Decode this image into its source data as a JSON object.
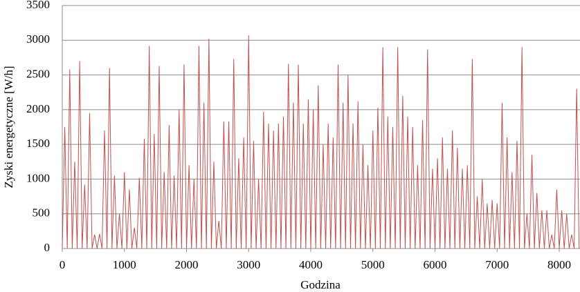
{
  "chart_data": {
    "type": "line",
    "x_label": "Godzina",
    "y_label": "Zyski energetyczne [W/h]",
    "color": "#c0504d",
    "grid": true,
    "xlim": [
      0,
      8334
    ],
    "xticks": [
      0,
      1000,
      2000,
      3000,
      4000,
      5000,
      6000,
      7000,
      8000
    ],
    "ylim": [
      0,
      3500
    ],
    "yticks": [
      0,
      500,
      1000,
      1500,
      2000,
      2500,
      3000,
      3500
    ],
    "x": [
      0,
      40,
      80,
      120,
      160,
      200,
      240,
      280,
      320,
      360,
      400,
      440,
      480,
      520,
      560,
      600,
      640,
      680,
      720,
      760,
      800,
      840,
      880,
      920,
      960,
      1000,
      1040,
      1080,
      1120,
      1160,
      1200,
      1240,
      1280,
      1320,
      1360,
      1400,
      1440,
      1480,
      1520,
      1560,
      1600,
      1640,
      1680,
      1720,
      1760,
      1800,
      1840,
      1880,
      1920,
      1960,
      2000,
      2040,
      2080,
      2120,
      2160,
      2200,
      2240,
      2280,
      2320,
      2360,
      2400,
      2440,
      2480,
      2520,
      2560,
      2600,
      2640,
      2680,
      2720,
      2760,
      2800,
      2840,
      2880,
      2920,
      2960,
      3000,
      3040,
      3080,
      3120,
      3160,
      3200,
      3240,
      3280,
      3320,
      3360,
      3400,
      3440,
      3480,
      3520,
      3560,
      3600,
      3640,
      3680,
      3720,
      3760,
      3800,
      3840,
      3880,
      3920,
      3960,
      4000,
      4040,
      4080,
      4120,
      4160,
      4200,
      4240,
      4280,
      4320,
      4360,
      4400,
      4440,
      4480,
      4520,
      4560,
      4600,
      4640,
      4680,
      4720,
      4760,
      4800,
      4840,
      4880,
      4920,
      4960,
      5000,
      5040,
      5080,
      5120,
      5160,
      5200,
      5240,
      5280,
      5320,
      5360,
      5400,
      5440,
      5480,
      5520,
      5560,
      5600,
      5640,
      5680,
      5720,
      5760,
      5800,
      5840,
      5880,
      5920,
      5960,
      6000,
      6040,
      6080,
      6120,
      6160,
      6200,
      6240,
      6280,
      6320,
      6360,
      6400,
      6440,
      6480,
      6520,
      6560,
      6600,
      6640,
      6680,
      6720,
      6760,
      6800,
      6840,
      6880,
      6920,
      6960,
      7000,
      7040,
      7080,
      7120,
      7160,
      7200,
      7240,
      7280,
      7320,
      7360,
      7400,
      7440,
      7480,
      7520,
      7560,
      7600,
      7640,
      7680,
      7720,
      7760,
      7800,
      7840,
      7880,
      7920,
      7960,
      8000,
      8040,
      8080,
      8120,
      8160,
      8200,
      8240,
      8280,
      8320
    ],
    "values": [
      0,
      1750,
      0,
      2580,
      0,
      1250,
      0,
      2700,
      0,
      920,
      0,
      1950,
      0,
      200,
      0,
      210,
      0,
      1700,
      0,
      2600,
      0,
      1050,
      0,
      500,
      0,
      1100,
      0,
      850,
      0,
      300,
      0,
      1020,
      0,
      1580,
      0,
      2920,
      0,
      1650,
      0,
      2630,
      0,
      1100,
      0,
      1780,
      0,
      1050,
      0,
      2000,
      0,
      2650,
      0,
      1200,
      0,
      1000,
      0,
      2920,
      0,
      2100,
      0,
      3020,
      0,
      1250,
      0,
      400,
      0,
      1830,
      0,
      1830,
      0,
      2730,
      0,
      1300,
      0,
      1600,
      0,
      3070,
      0,
      1550,
      0,
      1000,
      0,
      1970,
      0,
      1800,
      0,
      1700,
      0,
      1800,
      0,
      1900,
      0,
      2660,
      0,
      2100,
      0,
      2650,
      0,
      1800,
      0,
      2150,
      0,
      2000,
      0,
      2350,
      0,
      1500,
      0,
      1800,
      0,
      1600,
      0,
      2650,
      0,
      2100,
      0,
      2500,
      0,
      1800,
      0,
      2120,
      0,
      1500,
      0,
      1200,
      0,
      1700,
      0,
      2030,
      0,
      2900,
      0,
      1900,
      0,
      1750,
      0,
      2900,
      0,
      2200,
      0,
      1900,
      0,
      1750,
      0,
      1200,
      0,
      1850,
      0,
      2870,
      0,
      1150,
      0,
      1300,
      0,
      1600,
      0,
      1150,
      0,
      1700,
      0,
      1450,
      0,
      1150,
      0,
      1200,
      0,
      2730,
      0,
      750,
      0,
      1000,
      0,
      650,
      0,
      700,
      0,
      650,
      0,
      2100,
      0,
      1600,
      0,
      1100,
      0,
      1550,
      0,
      2900,
      0,
      500,
      0,
      1350,
      0,
      800,
      0,
      550,
      0,
      550,
      0,
      200,
      0,
      850,
      0,
      550,
      0,
      500,
      0,
      200,
      0,
      2300,
      0
    ]
  }
}
